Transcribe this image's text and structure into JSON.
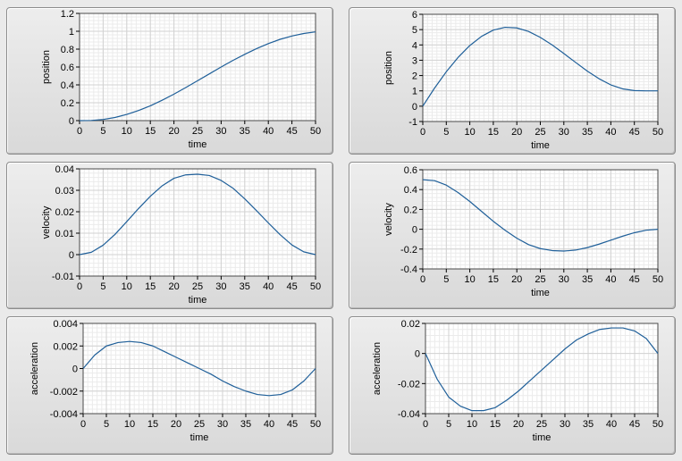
{
  "chart_data": [
    {
      "type": "line",
      "id": "chart-1",
      "xlabel": "time",
      "ylabel": "position",
      "xlim": [
        0,
        50
      ],
      "ylim": [
        0,
        1.2
      ],
      "xticks": [
        0,
        5,
        10,
        15,
        20,
        25,
        30,
        35,
        40,
        45,
        50
      ],
      "yticks": [
        0,
        0.2,
        0.4,
        0.6,
        0.8,
        1,
        1.2
      ],
      "ytick_labels": [
        "0",
        "0.2",
        "0.4",
        "0.6",
        "0.8",
        "1",
        "1.2"
      ],
      "grid": true,
      "series": [
        {
          "name": "position",
          "x": [
            0,
            2.5,
            5,
            7.5,
            10,
            12.5,
            15,
            17.5,
            20,
            22.5,
            25,
            27.5,
            30,
            32.5,
            35,
            37.5,
            40,
            42.5,
            45,
            47.5,
            50
          ],
          "y": [
            0,
            0.002,
            0.013,
            0.035,
            0.069,
            0.113,
            0.166,
            0.228,
            0.296,
            0.37,
            0.446,
            0.523,
            0.6,
            0.674,
            0.742,
            0.806,
            0.862,
            0.91,
            0.947,
            0.975,
            0.993
          ],
          "color": "#1f5f99"
        }
      ]
    },
    {
      "type": "line",
      "id": "chart-2",
      "xlabel": "time",
      "ylabel": "position",
      "xlim": [
        0,
        50
      ],
      "ylim": [
        -1,
        6
      ],
      "xticks": [
        0,
        5,
        10,
        15,
        20,
        25,
        30,
        35,
        40,
        45,
        50
      ],
      "yticks": [
        -1,
        0,
        1,
        2,
        3,
        4,
        5,
        6
      ],
      "ytick_labels": [
        "-1",
        "0",
        "1",
        "2",
        "3",
        "4",
        "5",
        "6"
      ],
      "grid": true,
      "series": [
        {
          "name": "position",
          "x": [
            0,
            2.5,
            5,
            7.5,
            10,
            12.5,
            15,
            17.5,
            20,
            22.5,
            25,
            27.5,
            30,
            32.5,
            35,
            37.5,
            40,
            42.5,
            45,
            47.5,
            50
          ],
          "y": [
            0,
            1.18,
            2.25,
            3.18,
            3.96,
            4.56,
            4.97,
            5.15,
            5.11,
            4.88,
            4.49,
            4.0,
            3.44,
            2.86,
            2.29,
            1.79,
            1.39,
            1.13,
            1.02,
            1.0,
            1.0
          ],
          "color": "#1f5f99"
        }
      ]
    },
    {
      "type": "line",
      "id": "chart-3",
      "xlabel": "time",
      "ylabel": "velocity",
      "xlim": [
        0,
        50
      ],
      "ylim": [
        -0.01,
        0.04
      ],
      "xticks": [
        0,
        5,
        10,
        15,
        20,
        25,
        30,
        35,
        40,
        45,
        50
      ],
      "yticks": [
        -0.01,
        0,
        0.01,
        0.02,
        0.03,
        0.04
      ],
      "ytick_labels": [
        "-0.01",
        "0",
        "0.01",
        "0.02",
        "0.03",
        "0.04"
      ],
      "grid": true,
      "series": [
        {
          "name": "velocity",
          "x": [
            0,
            2.5,
            5,
            7.5,
            10,
            12.5,
            15,
            17.5,
            20,
            22.5,
            25,
            27.5,
            30,
            32.5,
            35,
            37.5,
            40,
            42.5,
            45,
            47.5,
            50
          ],
          "y": [
            0,
            0.0011,
            0.0044,
            0.0094,
            0.0154,
            0.0215,
            0.0272,
            0.0321,
            0.0356,
            0.0372,
            0.0375,
            0.0369,
            0.0346,
            0.031,
            0.026,
            0.0205,
            0.0148,
            0.0093,
            0.0045,
            0.0013,
            0
          ],
          "color": "#1f5f99"
        }
      ]
    },
    {
      "type": "line",
      "id": "chart-4",
      "xlabel": "time",
      "ylabel": "velocity",
      "xlim": [
        0,
        50
      ],
      "ylim": [
        -0.4,
        0.6
      ],
      "xticks": [
        0,
        5,
        10,
        15,
        20,
        25,
        30,
        35,
        40,
        45,
        50
      ],
      "yticks": [
        -0.4,
        -0.2,
        0,
        0.2,
        0.4,
        0.6
      ],
      "ytick_labels": [
        "-0.4",
        "-0.2",
        "0",
        "0.2",
        "0.4",
        "0.6"
      ],
      "grid": true,
      "series": [
        {
          "name": "velocity",
          "x": [
            0,
            2.5,
            5,
            7.5,
            10,
            12.5,
            15,
            17.5,
            20,
            22.5,
            25,
            27.5,
            30,
            32.5,
            35,
            37.5,
            40,
            42.5,
            45,
            47.5,
            50
          ],
          "y": [
            0.5,
            0.49,
            0.445,
            0.37,
            0.28,
            0.18,
            0.08,
            -0.01,
            -0.09,
            -0.155,
            -0.195,
            -0.215,
            -0.22,
            -0.21,
            -0.185,
            -0.15,
            -0.11,
            -0.07,
            -0.035,
            -0.01,
            0
          ],
          "color": "#1f5f99"
        }
      ]
    },
    {
      "type": "line",
      "id": "chart-5",
      "xlabel": "time",
      "ylabel": "acceleration",
      "xlim": [
        0,
        50
      ],
      "ylim": [
        -0.004,
        0.004
      ],
      "xticks": [
        0,
        5,
        10,
        15,
        20,
        25,
        30,
        35,
        40,
        45,
        50
      ],
      "yticks": [
        -0.004,
        -0.002,
        0,
        0.002,
        0.004
      ],
      "ytick_labels": [
        "-0.004",
        "-0.002",
        "0",
        "0.002",
        "0.004"
      ],
      "grid": true,
      "series": [
        {
          "name": "acceleration",
          "x": [
            0,
            2.5,
            5,
            7.5,
            10,
            12.5,
            15,
            17.5,
            20,
            22.5,
            25,
            27.5,
            30,
            32.5,
            35,
            37.5,
            40,
            42.5,
            45,
            47.5,
            50
          ],
          "y": [
            0,
            0.0012,
            0.002,
            0.0023,
            0.0024,
            0.0023,
            0.002,
            0.0015,
            0.001,
            0.0005,
            0,
            -0.0005,
            -0.0011,
            -0.0016,
            -0.002,
            -0.0023,
            -0.0024,
            -0.0023,
            -0.0019,
            -0.0011,
            0
          ],
          "color": "#1f5f99"
        }
      ]
    },
    {
      "type": "line",
      "id": "chart-6",
      "xlabel": "time",
      "ylabel": "acceleration",
      "xlim": [
        0,
        50
      ],
      "ylim": [
        -0.04,
        0.02
      ],
      "xticks": [
        0,
        5,
        10,
        15,
        20,
        25,
        30,
        35,
        40,
        45,
        50
      ],
      "yticks": [
        -0.04,
        -0.02,
        0,
        0.02
      ],
      "ytick_labels": [
        "-0.04",
        "-0.02",
        "0",
        "0.02"
      ],
      "grid": true,
      "series": [
        {
          "name": "acceleration",
          "x": [
            0,
            2.5,
            5,
            7.5,
            10,
            12.5,
            15,
            17.5,
            20,
            22.5,
            25,
            27.5,
            30,
            32.5,
            35,
            37.5,
            40,
            42.5,
            45,
            47.5,
            50
          ],
          "y": [
            0,
            -0.017,
            -0.029,
            -0.035,
            -0.038,
            -0.038,
            -0.036,
            -0.031,
            -0.025,
            -0.018,
            -0.011,
            -0.004,
            0.003,
            0.009,
            0.013,
            0.016,
            0.017,
            0.017,
            0.015,
            0.01,
            0
          ],
          "color": "#1f5f99"
        }
      ]
    }
  ]
}
